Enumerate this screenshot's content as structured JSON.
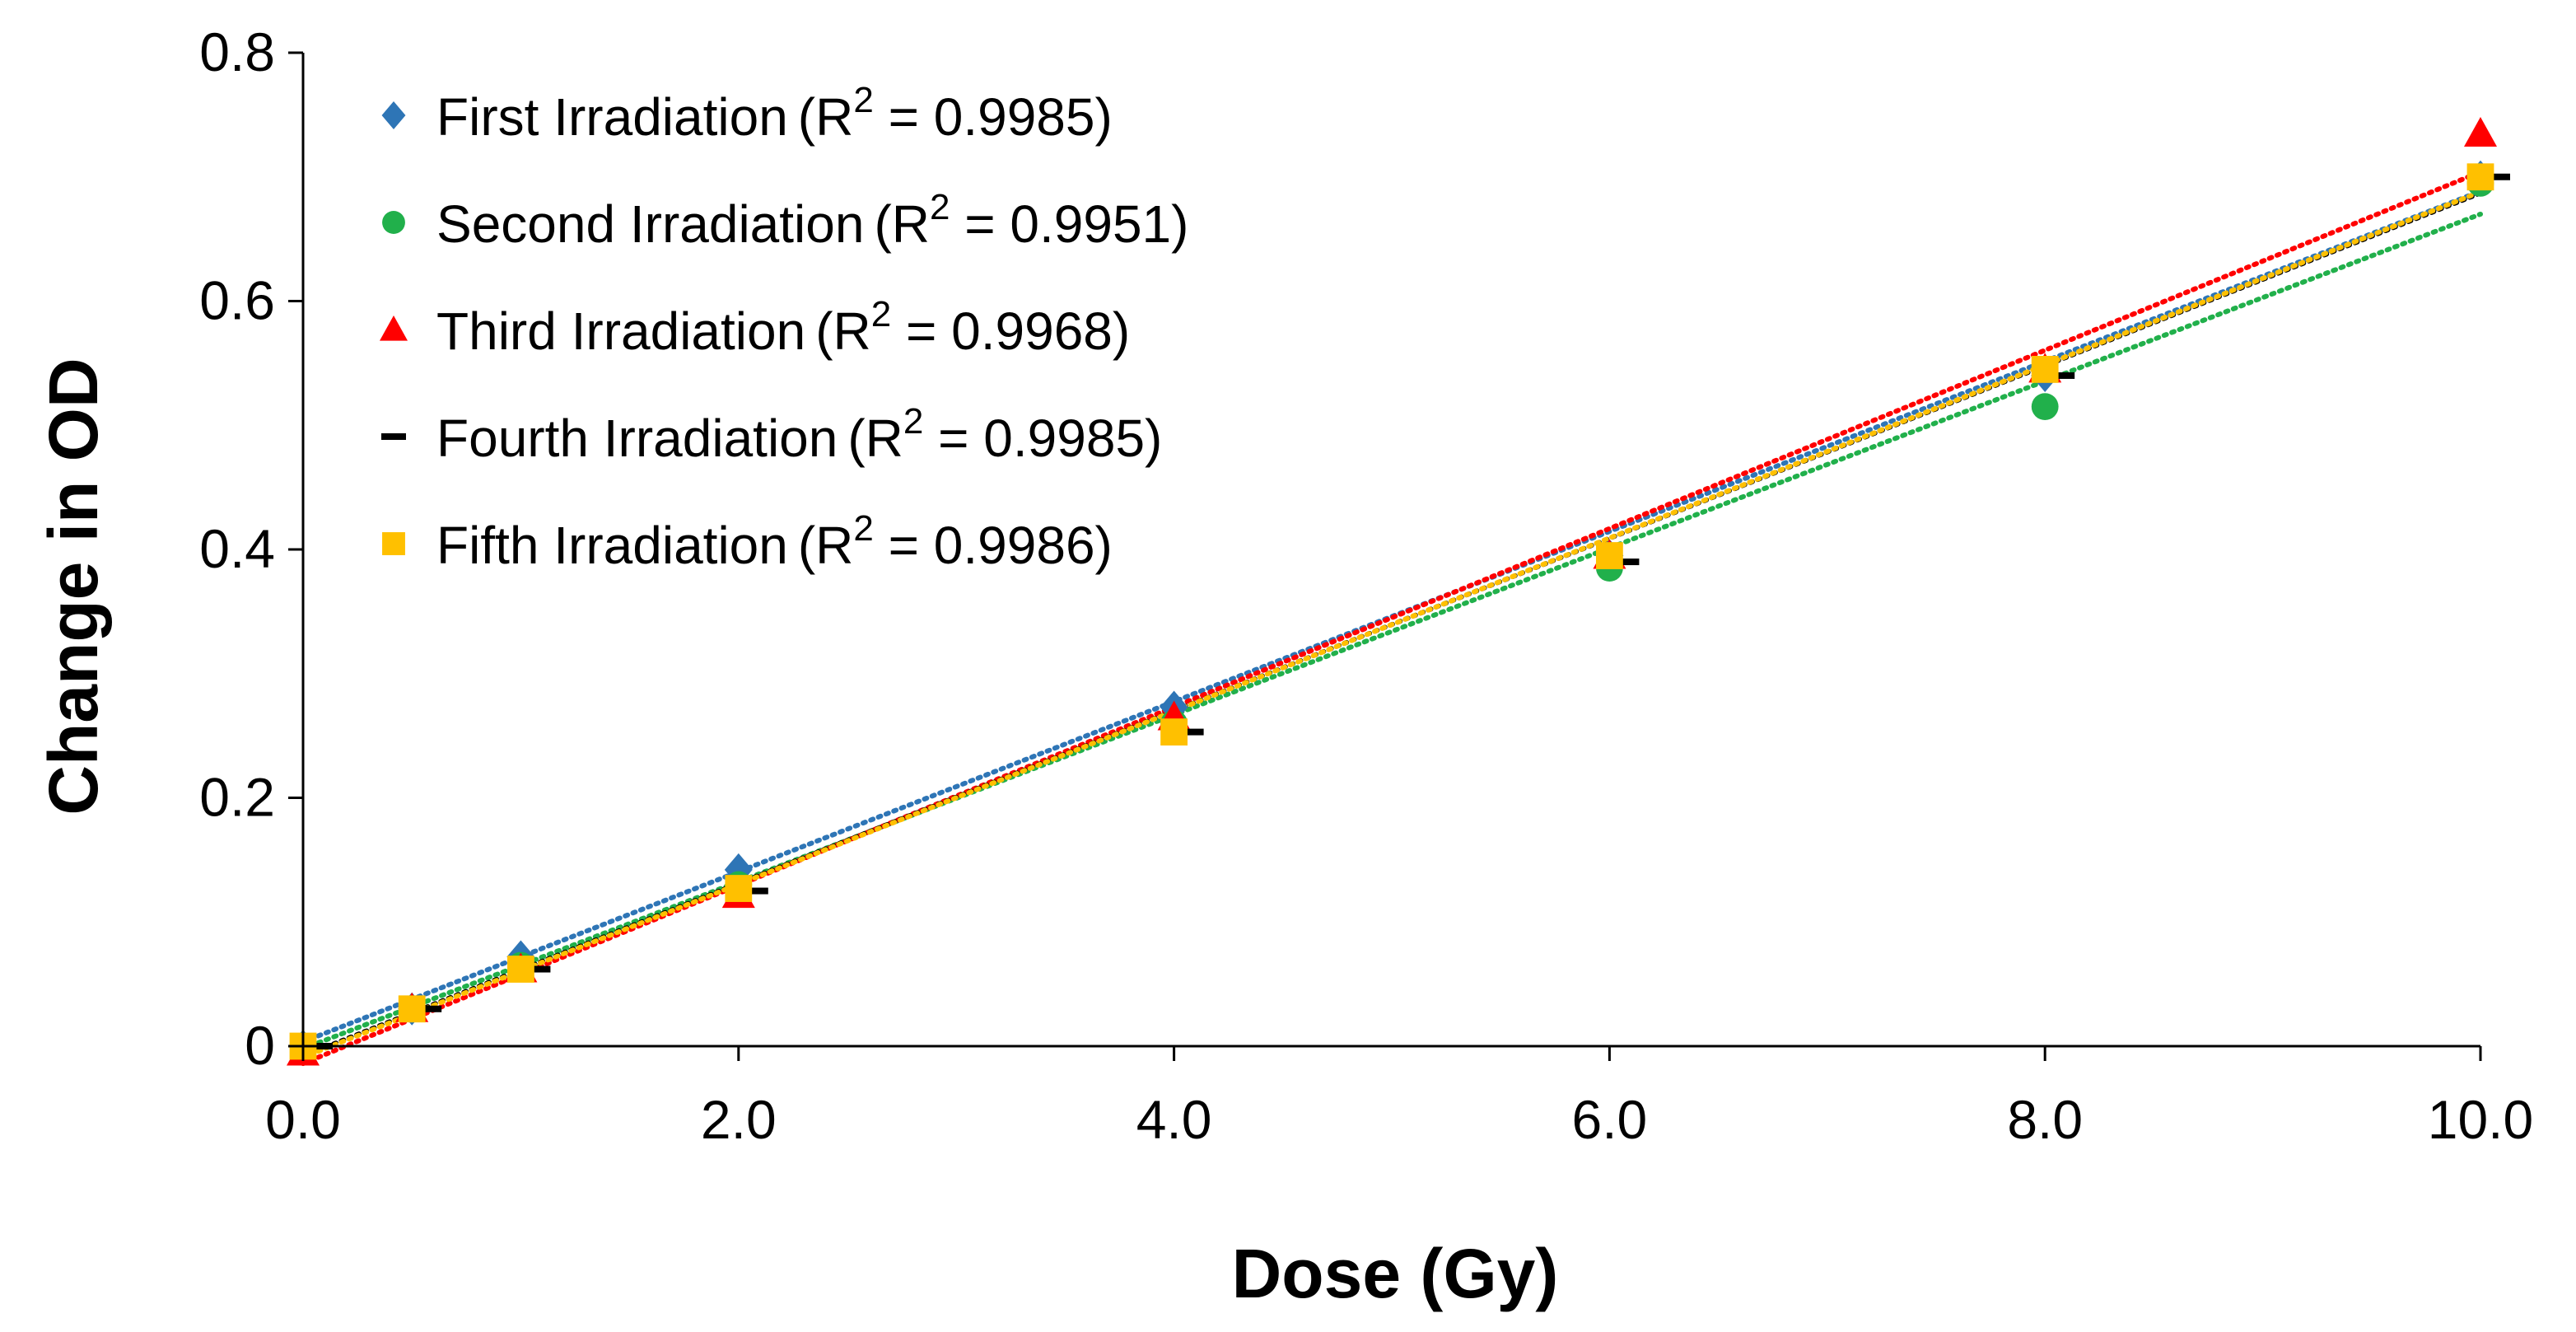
{
  "chart_data": {
    "type": "scatter",
    "title": "",
    "xlabel": "Dose (Gy)",
    "ylabel": "Change in OD",
    "xlim": [
      0,
      10
    ],
    "ylim": [
      0,
      0.8
    ],
    "x_ticks": [
      0,
      2,
      4,
      6,
      8,
      10
    ],
    "x_tick_labels": [
      "0.0",
      "2.0",
      "4.0",
      "6.0",
      "8.0",
      "10.0"
    ],
    "y_ticks": [
      0,
      0.2,
      0.4,
      0.6,
      0.8
    ],
    "y_tick_labels": [
      "0",
      "0.2",
      "0.4",
      "0.6",
      "0.8"
    ],
    "grid": false,
    "legend_position": "top-left",
    "trendline_style": "dotted linear fit",
    "series": [
      {
        "name": "First Irradiation",
        "r2_text": "R",
        "r2_sup": "2",
        "r2_value": " = 0.9985)",
        "r2_open": "(",
        "r2": 0.9985,
        "marker": "diamond",
        "color": "#2E75B6",
        "x": [
          0,
          0.5,
          1,
          2,
          4,
          6,
          8,
          10
        ],
        "y": [
          0,
          0.03,
          0.072,
          0.142,
          0.273,
          0.395,
          0.54,
          0.7
        ],
        "fit": {
          "slope": 0.0685,
          "intercept": 0.0035
        }
      },
      {
        "name": "Second Irradiation",
        "r2_text": "R",
        "r2_sup": "2",
        "r2_value": " = 0.9951)",
        "r2_open": "(",
        "r2": 0.9951,
        "marker": "circle",
        "color": "#21B04B",
        "x": [
          0,
          0.5,
          1,
          2,
          4,
          6,
          8,
          10
        ],
        "y": [
          0,
          0.03,
          0.065,
          0.13,
          0.26,
          0.385,
          0.515,
          0.695
        ],
        "fit": {
          "slope": 0.0672,
          "intercept": -0.002
        }
      },
      {
        "name": "Third Irradiation",
        "r2_text": "R",
        "r2_sup": "2",
        "r2_value": " = 0.9968)",
        "r2_open": "(",
        "r2": 0.9968,
        "marker": "triangle",
        "color": "#FF0000",
        "x": [
          0,
          0.5,
          1,
          2,
          4,
          6,
          8,
          10
        ],
        "y": [
          -0.005,
          0.03,
          0.062,
          0.122,
          0.265,
          0.395,
          0.545,
          0.735
        ],
        "fit": {
          "slope": 0.0718,
          "intercept": -0.014
        }
      },
      {
        "name": "Fourth Irradiation",
        "r2_text": "R",
        "r2_sup": "2",
        "r2_value": " = 0.9985)",
        "r2_open": "(",
        "r2": 0.9985,
        "marker": "dash",
        "color": "#000000",
        "x": [
          0,
          0.5,
          1,
          2,
          4,
          6,
          8,
          10
        ],
        "y": [
          0,
          0.03,
          0.062,
          0.125,
          0.253,
          0.39,
          0.54,
          0.7
        ],
        "fit": {
          "slope": 0.0695,
          "intercept": -0.008
        }
      },
      {
        "name": "Fifth Irradiation",
        "r2_text": "R",
        "r2_sup": "2",
        "r2_value": " = 0.9986)",
        "r2_open": "(",
        "r2": 0.9986,
        "marker": "square",
        "color": "#FFC000",
        "x": [
          0,
          0.5,
          1,
          2,
          4,
          6,
          8,
          10
        ],
        "y": [
          0,
          0.03,
          0.062,
          0.127,
          0.253,
          0.395,
          0.545,
          0.7
        ],
        "fit": {
          "slope": 0.0697,
          "intercept": -0.009
        }
      }
    ]
  }
}
